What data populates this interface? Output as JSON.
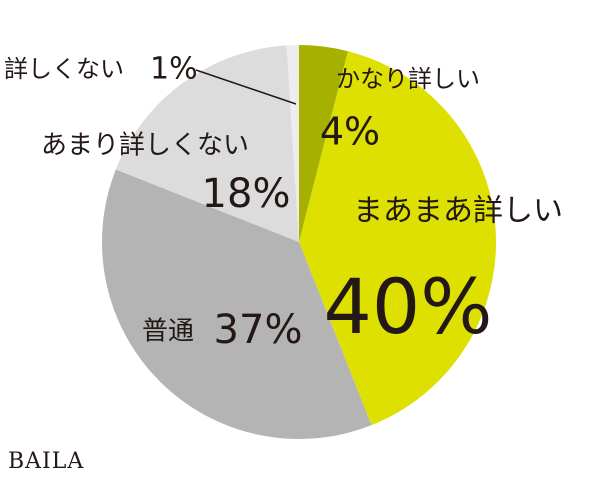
{
  "chart_data": {
    "type": "pie",
    "categories": [
      "かなり詳しい",
      "まあまあ詳しい",
      "普通",
      "あまり詳しくない",
      "詳しくない"
    ],
    "values": [
      4,
      40,
      37,
      18,
      1
    ],
    "value_labels": [
      "4%",
      "40%",
      "37%",
      "18%",
      "1%"
    ],
    "colors": [
      "#a5b000",
      "#dde000",
      "#b4b4b4",
      "#dcdcdc",
      "#ededed"
    ]
  },
  "watermark": "BAILA"
}
